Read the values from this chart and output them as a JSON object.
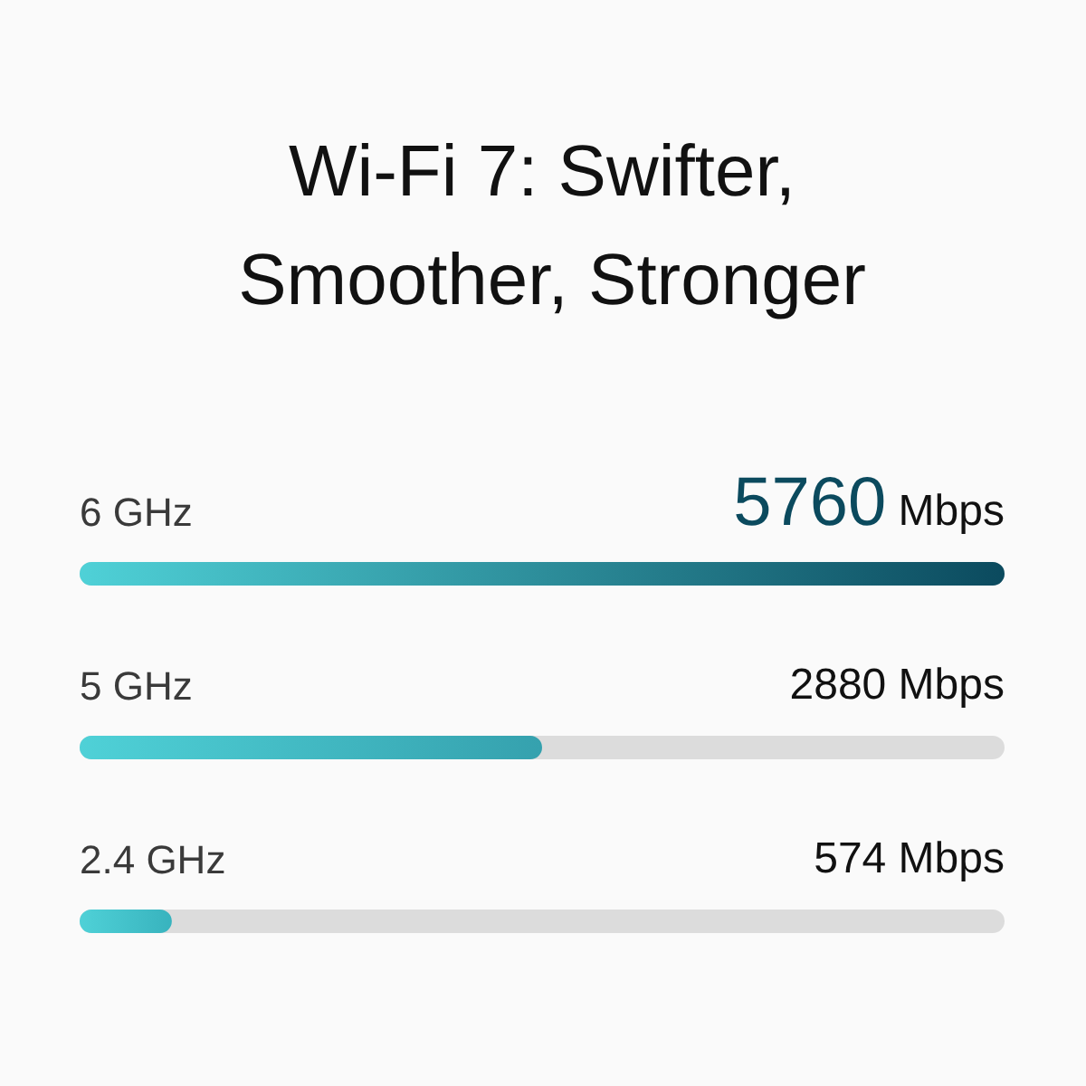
{
  "chart_data": {
    "type": "bar",
    "orientation": "horizontal",
    "title": "Wi-Fi 7: Swifter, Smoother, Stronger",
    "categories": [
      "6 GHz",
      "5 GHz",
      "2.4 GHz"
    ],
    "values": [
      5760,
      2880,
      574
    ],
    "value_labels": [
      "5760 Mbps",
      "2880 Mbps",
      "574 Mbps"
    ],
    "colors": [
      "#0b4a5e",
      "#35a1ae",
      "#38b3be"
    ],
    "tick_labels": "y"
  }
}
